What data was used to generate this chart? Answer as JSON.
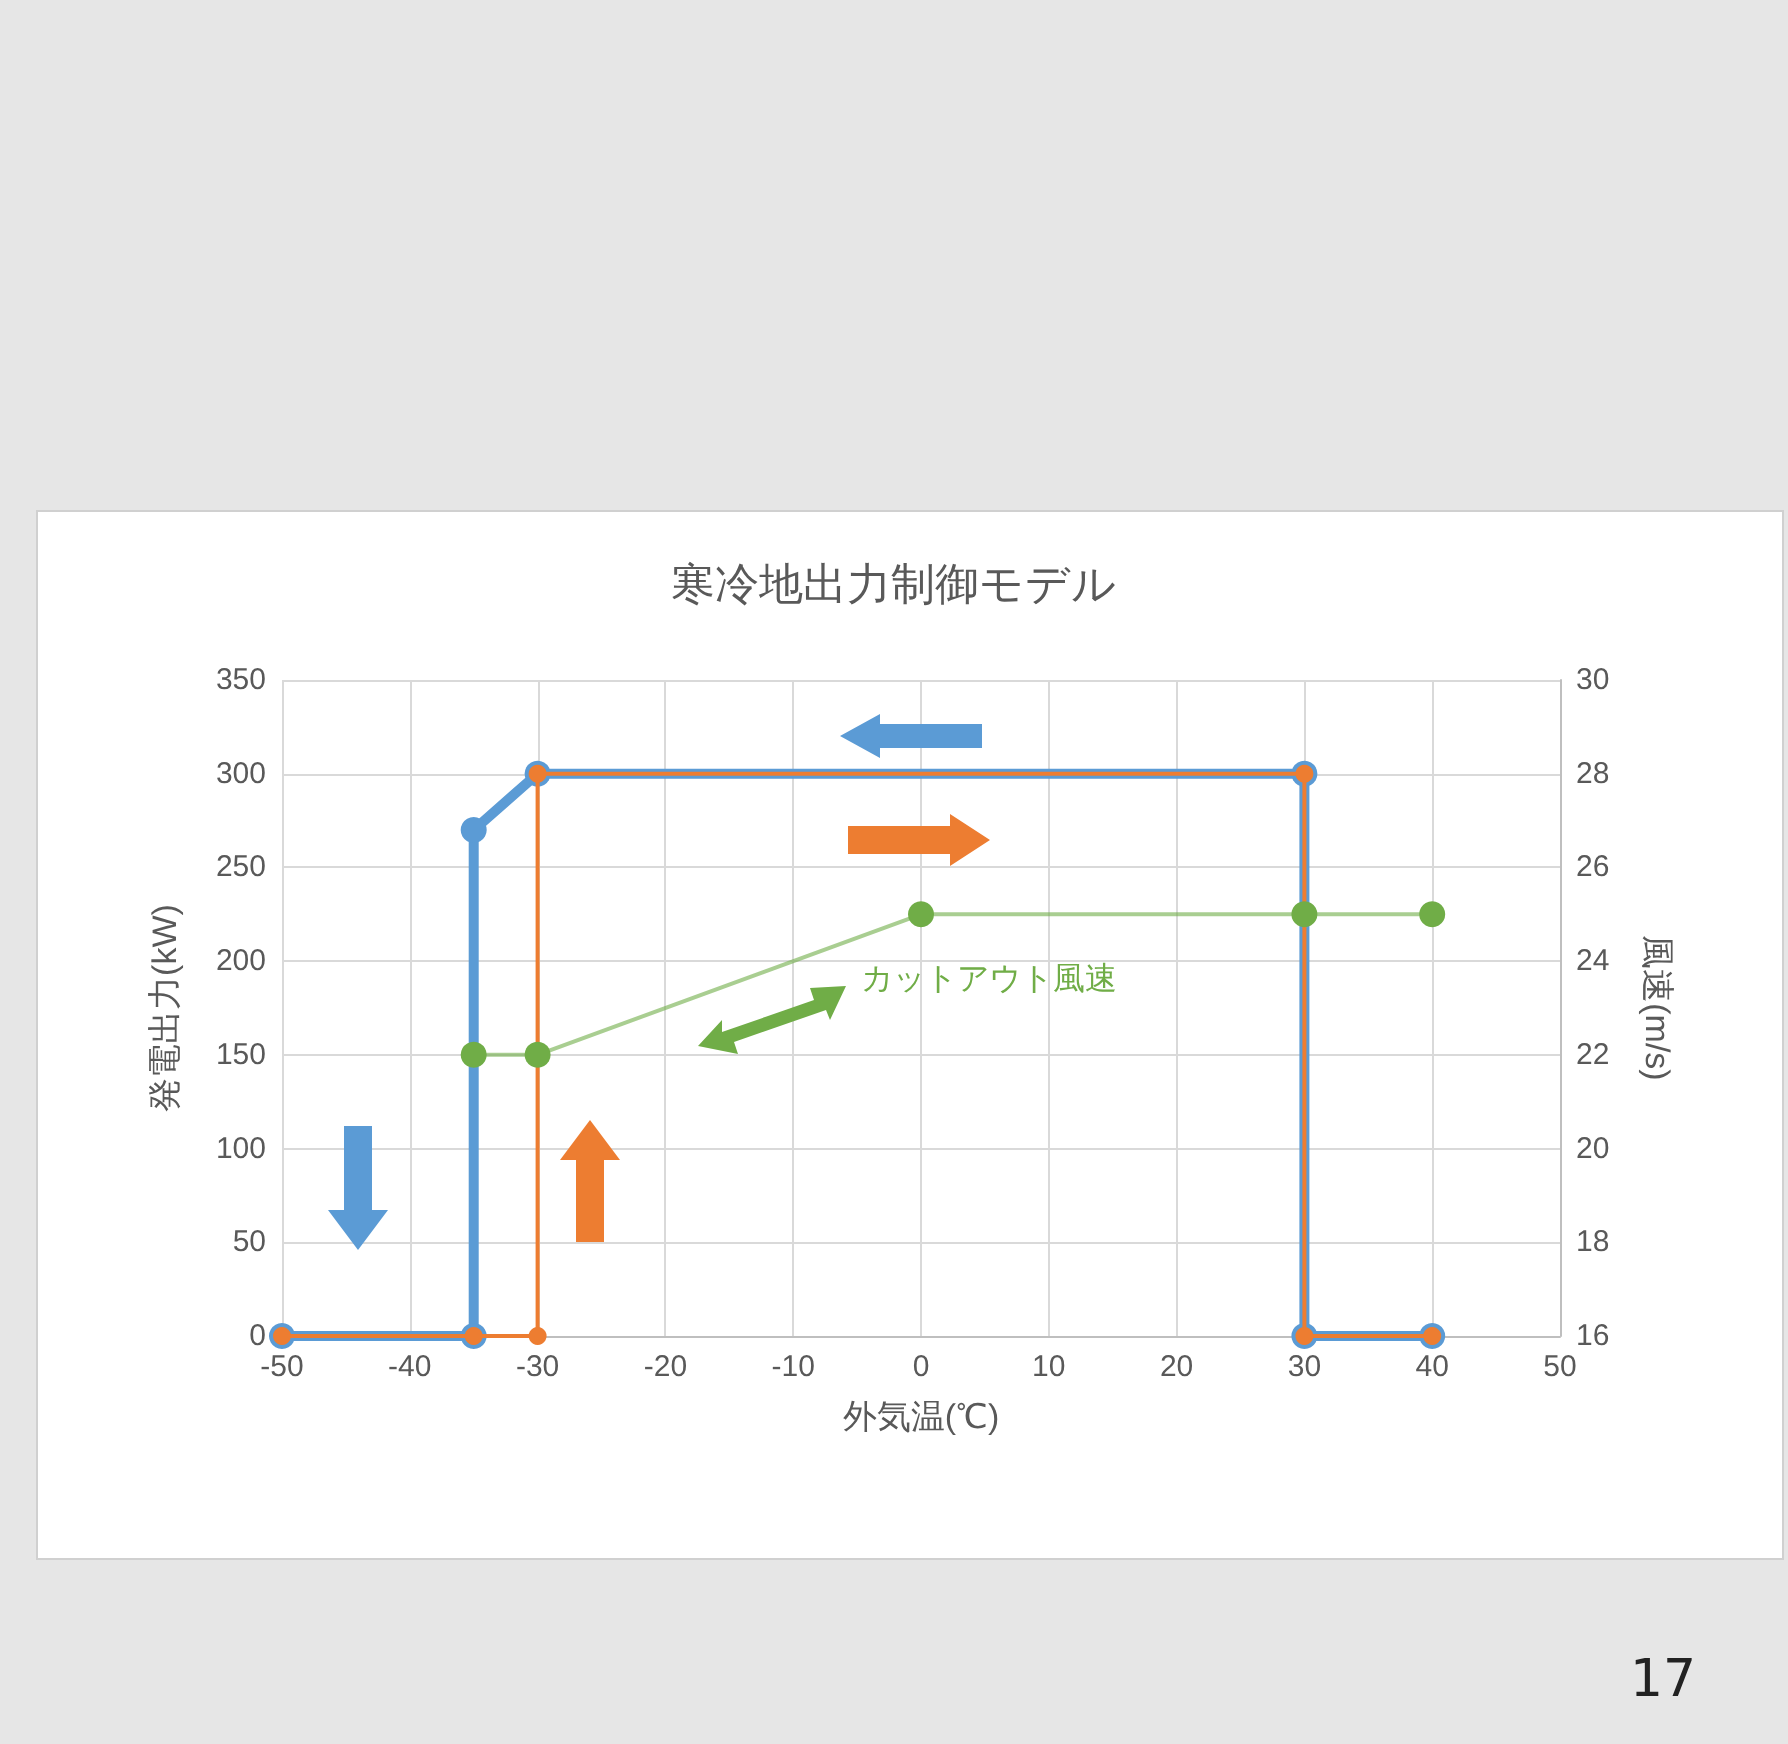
{
  "chart_data": {
    "type": "line",
    "title": "寒冷地出力制御モデル",
    "xlabel": "外気温(℃)",
    "ylabel": "発電出力(kW)",
    "y2label": "風速(m/s)",
    "xlim": [
      -50,
      50
    ],
    "xticks": [
      -50,
      -40,
      -30,
      -20,
      -10,
      0,
      10,
      20,
      30,
      40,
      50
    ],
    "ylim": [
      0,
      350
    ],
    "yticks": [
      0,
      50,
      100,
      150,
      200,
      250,
      300,
      350
    ],
    "y2lim": [
      16,
      30
    ],
    "y2ticks": [
      16,
      18,
      20,
      22,
      24,
      26,
      28,
      30
    ],
    "grid": true,
    "legend": false,
    "marker": "circle",
    "line_style": "solid",
    "series": [
      {
        "color": "#ed7d31",
        "x": [
          -50,
          -35,
          -30,
          -30,
          30,
          30,
          40
        ],
        "values": [
          0,
          0,
          0,
          300,
          300,
          0,
          0
        ]
      },
      {
        "color": "#5b9bd5",
        "x": [
          -50,
          -35,
          -35,
          -30,
          30,
          30,
          40
        ],
        "values": [
          0,
          0,
          270,
          300,
          300,
          0,
          0
        ]
      },
      {
        "name": "カットアウト風速",
        "color": "#70ad47",
        "axis": "y2",
        "x": [
          -35,
          -30,
          0,
          30,
          40
        ],
        "values": [
          22,
          22,
          25,
          25,
          25
        ]
      }
    ],
    "annotations": [
      "17"
    ]
  }
}
